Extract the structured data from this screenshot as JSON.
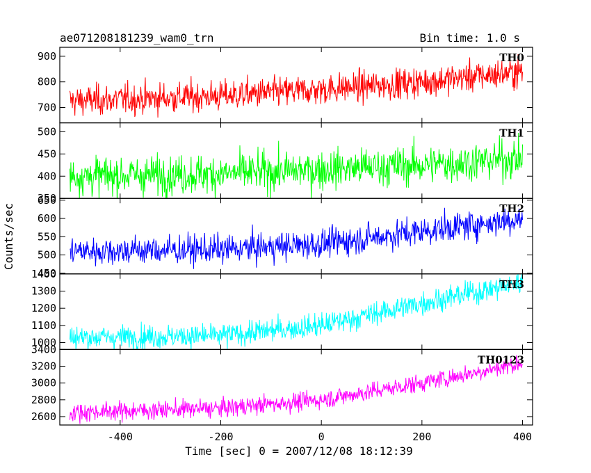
{
  "header": {
    "title": "ae071208181239_wam0_trn",
    "bin_time": "Bin time: 1.0 s"
  },
  "axes": {
    "xlabel": "Time [sec] 0 = 2007/12/08 18:12:39",
    "ylabel": "Counts/sec"
  },
  "chart_data": {
    "type": "line",
    "title": "ae071208181239_wam0_trn",
    "xlabel": "Time [sec] 0 = 2007/12/08 18:12:39",
    "ylabel": "Counts/sec",
    "xlim": [
      -520,
      420
    ],
    "xticks": [
      -400,
      -200,
      0,
      200,
      400
    ],
    "x_range_data": [
      -500,
      400
    ],
    "bin_time_s": 1.0,
    "grid": false,
    "legend": "none",
    "panels": [
      {
        "name": "TH0",
        "color": "#ff0000",
        "ylim": [
          640,
          935
        ],
        "yticks": [
          700,
          800,
          900
        ],
        "trend": {
          "x": [
            -500,
            -200,
            0,
            200,
            400
          ],
          "y": [
            725,
            745,
            770,
            800,
            840
          ]
        },
        "noise": 30
      },
      {
        "name": "TH1",
        "color": "#00ff00",
        "ylim": [
          350,
          520
        ],
        "yticks": [
          350,
          400,
          450,
          500
        ],
        "trend": {
          "x": [
            -500,
            -200,
            0,
            200,
            400
          ],
          "y": [
            400,
            405,
            415,
            425,
            440
          ]
        },
        "noise": 22
      },
      {
        "name": "TH2",
        "color": "#0000ff",
        "ylim": [
          448,
          655
        ],
        "yticks": [
          450,
          500,
          550,
          600,
          650
        ],
        "trend": {
          "x": [
            -500,
            -200,
            0,
            200,
            400
          ],
          "y": [
            510,
            515,
            530,
            565,
            600
          ]
        },
        "noise": 20
      },
      {
        "name": "TH3",
        "color": "#00ffff",
        "ylim": [
          960,
          1400
        ],
        "yticks": [
          1000,
          1100,
          1200,
          1300,
          1400
        ],
        "trend": {
          "x": [
            -500,
            -200,
            0,
            200,
            400
          ],
          "y": [
            1030,
            1040,
            1100,
            1230,
            1350
          ]
        },
        "noise": 35
      },
      {
        "name": "TH0123",
        "color": "#ff00ff",
        "ylim": [
          2500,
          3400
        ],
        "yticks": [
          2600,
          2800,
          3000,
          3200,
          3400
        ],
        "trend": {
          "x": [
            -500,
            -200,
            0,
            200,
            400
          ],
          "y": [
            2650,
            2700,
            2800,
            3000,
            3240
          ]
        },
        "noise": 55
      }
    ]
  }
}
